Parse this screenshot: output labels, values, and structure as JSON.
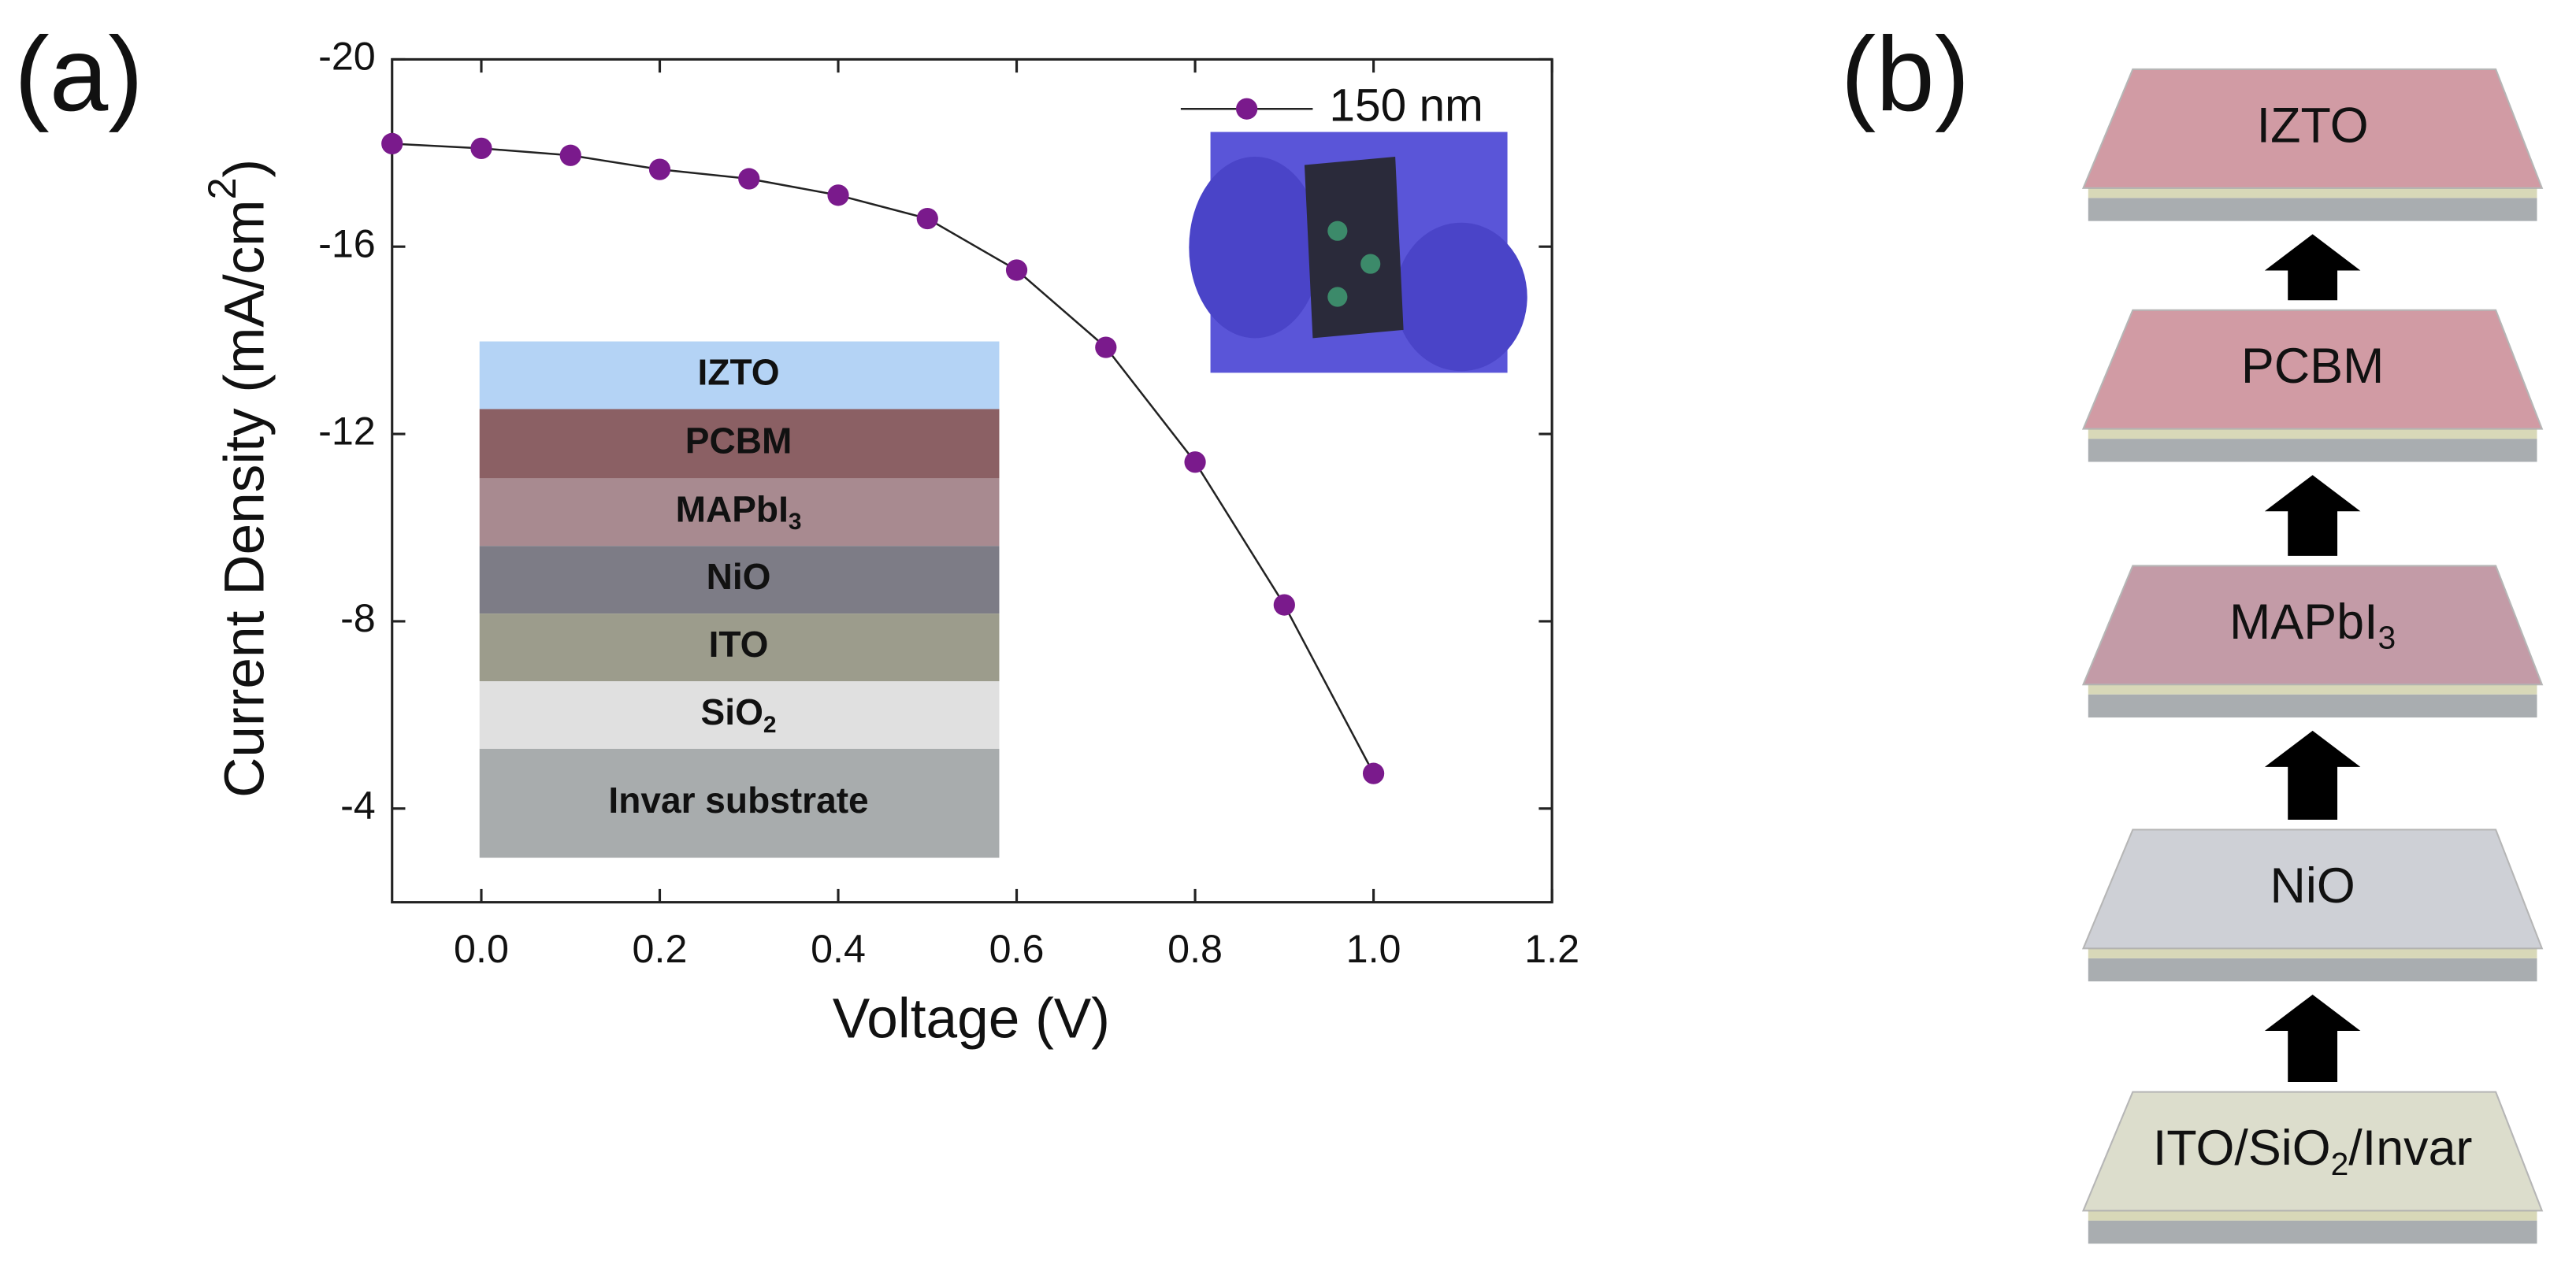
{
  "chart_data": {
    "type": "line",
    "panel_label": "(a)",
    "xlabel": "Voltage (V)",
    "ylabel": {
      "text": "Current Density (mA/cm",
      "sup": "2",
      "end": ")"
    },
    "x": [
      -0.1,
      0.0,
      0.1,
      0.2,
      0.3,
      0.4,
      0.5,
      0.6,
      0.7,
      0.8,
      0.9,
      1.0
    ],
    "series": [
      {
        "name": "150 nm",
        "color": "#7a1a8c",
        "values": [
          -18.2,
          -18.1,
          -17.95,
          -17.65,
          -17.45,
          -17.1,
          -16.6,
          -15.5,
          -13.85,
          -11.4,
          -8.35,
          -4.75
        ]
      }
    ],
    "xlim": [
      -0.1,
      1.2
    ],
    "xticks": [
      {
        "value": 0,
        "label": "0.0"
      },
      0.2,
      0.4,
      0.6,
      0.8,
      {
        "value": 1,
        "label": "1.0"
      },
      1.2
    ],
    "ylim": [
      -2,
      -20
    ],
    "yticks": [
      -4,
      -8,
      -12,
      -16,
      -20
    ],
    "legend": "upper right",
    "inset_layers": [
      {
        "text": "IZTO",
        "color": "#b4d3f5"
      },
      {
        "text": "PCBM",
        "color": "#8b6064"
      },
      {
        "text": "MAPbI",
        "sub": "3",
        "color": "#a88a90"
      },
      {
        "text": "NiO",
        "color": "#7d7c86"
      },
      {
        "text": "ITO",
        "color": "#9c9c8c"
      },
      {
        "text": "SiO",
        "sub": "2",
        "color": "#e0e0e0"
      },
      {
        "text": "Invar substrate",
        "color": "#a8acad"
      }
    ]
  },
  "diagram": {
    "panel_label": "(b)",
    "slabs": [
      {
        "text": "IZTO",
        "color": "#c98a95"
      },
      {
        "text": "PCBM",
        "color": "#c98a95"
      },
      {
        "text": "MAPbI",
        "sub": "3",
        "color": "#b98a98"
      },
      {
        "text": "NiO",
        "color": "#c6c8cf"
      },
      {
        "text": "ITO/SiO",
        "sub": "2",
        "end": "/Invar",
        "color": "#d7d8c4"
      }
    ]
  }
}
